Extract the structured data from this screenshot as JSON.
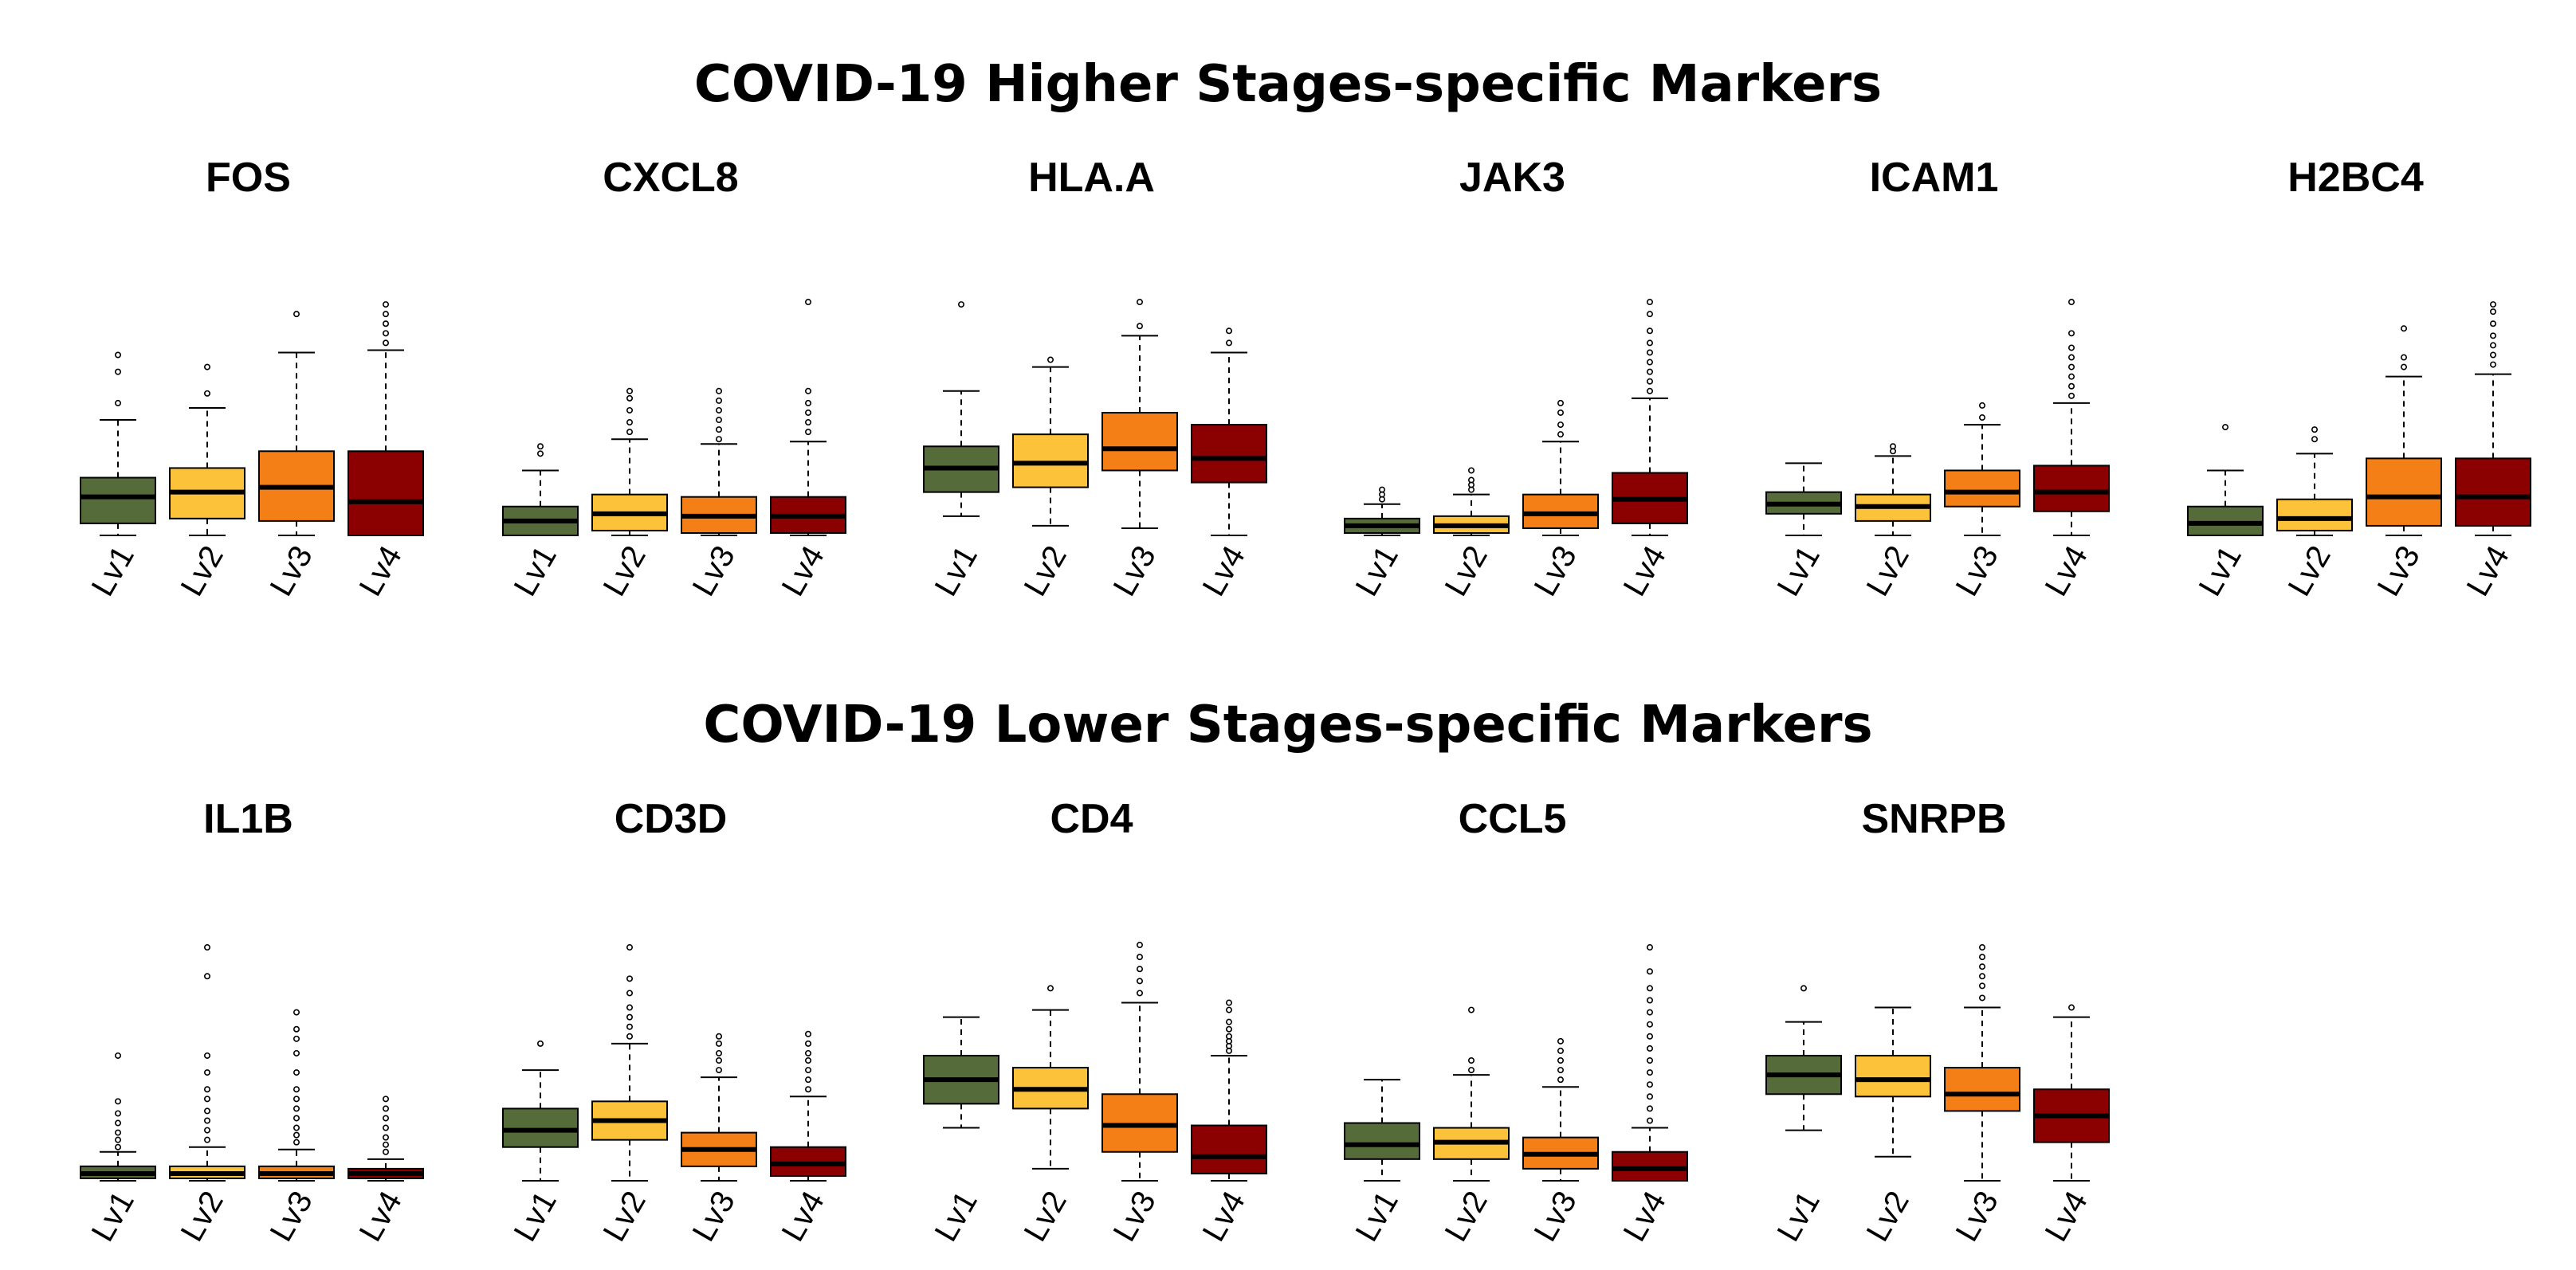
{
  "sections": [
    {
      "title": "COVID-19 Higher Stages-specific Markers"
    },
    {
      "title": "COVID-19 Lower Stages-specific Markers"
    }
  ],
  "colors": {
    "Lv1": "#556b3a",
    "Lv2": "#fbc23a",
    "Lv3": "#f57f17",
    "Lv4": "#8b0000",
    "outline": "#000000",
    "median": "#000000"
  },
  "chart_data": [
    {
      "type": "box",
      "gene": "FOS",
      "row": 0,
      "col": 0,
      "categories": [
        "Lv1",
        "Lv2",
        "Lv3",
        "Lv4"
      ],
      "ylim": [
        0,
        100
      ],
      "boxes": [
        {
          "q1": 5,
          "median": 16,
          "q3": 24,
          "low": 0,
          "high": 48,
          "outliers": [
            55,
            68,
            75
          ]
        },
        {
          "q1": 7,
          "median": 18,
          "q3": 28,
          "low": 0,
          "high": 53,
          "outliers": [
            59,
            70
          ]
        },
        {
          "q1": 6,
          "median": 20,
          "q3": 35,
          "low": 0,
          "high": 76,
          "outliers": [
            92
          ]
        },
        {
          "q1": 0,
          "median": 14,
          "q3": 35,
          "low": 0,
          "high": 77,
          "outliers": [
            80,
            84,
            88,
            92,
            96
          ]
        }
      ]
    },
    {
      "type": "box",
      "gene": "CXCL8",
      "row": 0,
      "col": 1,
      "categories": [
        "Lv1",
        "Lv2",
        "Lv3",
        "Lv4"
      ],
      "ylim": [
        0,
        100
      ],
      "boxes": [
        {
          "q1": 0,
          "median": 6,
          "q3": 12,
          "low": 0,
          "high": 27,
          "outliers": [
            34,
            37
          ]
        },
        {
          "q1": 2,
          "median": 9,
          "q3": 17,
          "low": 0,
          "high": 40,
          "outliers": [
            43,
            47,
            52,
            57,
            60
          ]
        },
        {
          "q1": 1,
          "median": 8,
          "q3": 16,
          "low": 0,
          "high": 38,
          "outliers": [
            40,
            44,
            48,
            52,
            56,
            60
          ]
        },
        {
          "q1": 1,
          "median": 8,
          "q3": 16,
          "low": 0,
          "high": 39,
          "outliers": [
            43,
            47,
            51,
            55,
            60,
            97
          ]
        }
      ]
    },
    {
      "type": "box",
      "gene": "HLA.A",
      "row": 0,
      "col": 2,
      "categories": [
        "Lv1",
        "Lv2",
        "Lv3",
        "Lv4"
      ],
      "ylim": [
        0,
        100
      ],
      "boxes": [
        {
          "q1": 18,
          "median": 28,
          "q3": 37,
          "low": 8,
          "high": 60,
          "outliers": [
            96
          ]
        },
        {
          "q1": 20,
          "median": 30,
          "q3": 42,
          "low": 4,
          "high": 70,
          "outliers": [
            73
          ]
        },
        {
          "q1": 27,
          "median": 36,
          "q3": 51,
          "low": 3,
          "high": 83,
          "outliers": [
            87,
            97
          ]
        },
        {
          "q1": 22,
          "median": 32,
          "q3": 46,
          "low": 0,
          "high": 76,
          "outliers": [
            80,
            85
          ]
        }
      ]
    },
    {
      "type": "box",
      "gene": "JAK3",
      "row": 0,
      "col": 3,
      "categories": [
        "Lv1",
        "Lv2",
        "Lv3",
        "Lv4"
      ],
      "ylim": [
        0,
        100
      ],
      "boxes": [
        {
          "q1": 1,
          "median": 4,
          "q3": 7,
          "low": 0,
          "high": 13,
          "outliers": [
            15,
            17,
            19
          ]
        },
        {
          "q1": 1,
          "median": 4,
          "q3": 8,
          "low": 0,
          "high": 17,
          "outliers": [
            19,
            21,
            23,
            27
          ]
        },
        {
          "q1": 3,
          "median": 9,
          "q3": 17,
          "low": 0,
          "high": 39,
          "outliers": [
            42,
            46,
            51,
            55
          ]
        },
        {
          "q1": 5,
          "median": 15,
          "q3": 26,
          "low": 0,
          "high": 57,
          "outliers": [
            60,
            64,
            68,
            72,
            76,
            80,
            85,
            92,
            97
          ]
        }
      ]
    },
    {
      "type": "box",
      "gene": "ICAM1",
      "row": 0,
      "col": 4,
      "categories": [
        "Lv1",
        "Lv2",
        "Lv3",
        "Lv4"
      ],
      "ylim": [
        0,
        100
      ],
      "boxes": [
        {
          "q1": 9,
          "median": 13,
          "q3": 18,
          "low": 0,
          "high": 30,
          "outliers": []
        },
        {
          "q1": 6,
          "median": 12,
          "q3": 17,
          "low": 0,
          "high": 33,
          "outliers": [
            35,
            37
          ]
        },
        {
          "q1": 12,
          "median": 18,
          "q3": 27,
          "low": 0,
          "high": 46,
          "outliers": [
            49,
            54
          ]
        },
        {
          "q1": 10,
          "median": 18,
          "q3": 29,
          "low": 0,
          "high": 55,
          "outliers": [
            58,
            62,
            66,
            70,
            74,
            78,
            84,
            97
          ]
        }
      ]
    },
    {
      "type": "box",
      "gene": "H2BC4",
      "row": 0,
      "col": 5,
      "categories": [
        "Lv1",
        "Lv2",
        "Lv3",
        "Lv4"
      ],
      "ylim": [
        0,
        100
      ],
      "boxes": [
        {
          "q1": 0,
          "median": 5,
          "q3": 12,
          "low": 0,
          "high": 27,
          "outliers": [
            45
          ]
        },
        {
          "q1": 2,
          "median": 7,
          "q3": 15,
          "low": 0,
          "high": 34,
          "outliers": [
            40,
            44
          ]
        },
        {
          "q1": 4,
          "median": 16,
          "q3": 32,
          "low": 0,
          "high": 66,
          "outliers": [
            70,
            74,
            86
          ]
        },
        {
          "q1": 4,
          "median": 16,
          "q3": 32,
          "low": 0,
          "high": 67,
          "outliers": [
            71,
            75,
            79,
            83,
            88,
            93,
            96
          ]
        }
      ]
    },
    {
      "type": "box",
      "gene": "IL1B",
      "row": 1,
      "col": 0,
      "categories": [
        "Lv1",
        "Lv2",
        "Lv3",
        "Lv4"
      ],
      "ylim": [
        0,
        100
      ],
      "boxes": [
        {
          "q1": 1,
          "median": 3,
          "q3": 6,
          "low": 0,
          "high": 12,
          "outliers": [
            14,
            17,
            20,
            24,
            28,
            33,
            52
          ]
        },
        {
          "q1": 1,
          "median": 3,
          "q3": 6,
          "low": 0,
          "high": 14,
          "outliers": [
            17,
            21,
            25,
            29,
            34,
            38,
            45,
            52,
            85,
            97
          ]
        },
        {
          "q1": 1,
          "median": 3,
          "q3": 6,
          "low": 0,
          "high": 13,
          "outliers": [
            16,
            19,
            22,
            26,
            30,
            34,
            38,
            45,
            53,
            59,
            63,
            70
          ]
        },
        {
          "q1": 1,
          "median": 3,
          "q3": 5,
          "low": 0,
          "high": 9,
          "outliers": [
            12,
            15,
            18,
            22,
            26,
            30,
            34
          ]
        }
      ]
    },
    {
      "type": "box",
      "gene": "CD3D",
      "row": 1,
      "col": 1,
      "categories": [
        "Lv1",
        "Lv2",
        "Lv3",
        "Lv4"
      ],
      "ylim": [
        0,
        100
      ],
      "boxes": [
        {
          "q1": 14,
          "median": 21,
          "q3": 30,
          "low": 0,
          "high": 46,
          "outliers": [
            57
          ]
        },
        {
          "q1": 17,
          "median": 25,
          "q3": 33,
          "low": 0,
          "high": 57,
          "outliers": [
            60,
            64,
            68,
            72,
            78,
            84,
            97
          ]
        },
        {
          "q1": 6,
          "median": 13,
          "q3": 20,
          "low": 0,
          "high": 43,
          "outliers": [
            46,
            50,
            53,
            57,
            60
          ]
        },
        {
          "q1": 2,
          "median": 7,
          "q3": 14,
          "low": 0,
          "high": 35,
          "outliers": [
            38,
            42,
            46,
            50,
            53,
            57,
            61
          ]
        }
      ]
    },
    {
      "type": "box",
      "gene": "CD4",
      "row": 1,
      "col": 2,
      "categories": [
        "Lv1",
        "Lv2",
        "Lv3",
        "Lv4"
      ],
      "ylim": [
        0,
        100
      ],
      "boxes": [
        {
          "q1": 32,
          "median": 42,
          "q3": 52,
          "low": 22,
          "high": 68,
          "outliers": []
        },
        {
          "q1": 30,
          "median": 38,
          "q3": 47,
          "low": 5,
          "high": 71,
          "outliers": [
            80
          ]
        },
        {
          "q1": 12,
          "median": 23,
          "q3": 36,
          "low": 0,
          "high": 74,
          "outliers": [
            78,
            83,
            88,
            93,
            98
          ]
        },
        {
          "q1": 3,
          "median": 10,
          "q3": 23,
          "low": 0,
          "high": 52,
          "outliers": [
            54,
            56,
            58,
            60,
            63,
            66,
            71,
            74
          ]
        }
      ]
    },
    {
      "type": "box",
      "gene": "CCL5",
      "row": 1,
      "col": 3,
      "categories": [
        "Lv1",
        "Lv2",
        "Lv3",
        "Lv4"
      ],
      "ylim": [
        0,
        100
      ],
      "boxes": [
        {
          "q1": 9,
          "median": 15,
          "q3": 24,
          "low": 0,
          "high": 42,
          "outliers": []
        },
        {
          "q1": 9,
          "median": 16,
          "q3": 22,
          "low": 0,
          "high": 44,
          "outliers": [
            46,
            50,
            71
          ]
        },
        {
          "q1": 5,
          "median": 11,
          "q3": 18,
          "low": 0,
          "high": 39,
          "outliers": [
            42,
            46,
            50,
            54,
            58
          ]
        },
        {
          "q1": 0,
          "median": 5,
          "q3": 12,
          "low": 0,
          "high": 22,
          "outliers": [
            25,
            30,
            35,
            40,
            45,
            50,
            55,
            60,
            65,
            70,
            75,
            80,
            87,
            97
          ]
        }
      ]
    },
    {
      "type": "box",
      "gene": "SNRPB",
      "row": 1,
      "col": 4,
      "categories": [
        "Lv1",
        "Lv2",
        "Lv3",
        "Lv4"
      ],
      "ylim": [
        0,
        100
      ],
      "boxes": [
        {
          "q1": 36,
          "median": 44,
          "q3": 52,
          "low": 21,
          "high": 66,
          "outliers": [
            80
          ]
        },
        {
          "q1": 35,
          "median": 42,
          "q3": 52,
          "low": 10,
          "high": 72,
          "outliers": []
        },
        {
          "q1": 29,
          "median": 36,
          "q3": 47,
          "low": 0,
          "high": 72,
          "outliers": [
            76,
            81,
            85,
            89,
            93,
            97
          ]
        },
        {
          "q1": 16,
          "median": 27,
          "q3": 38,
          "low": 0,
          "high": 68,
          "outliers": [
            72
          ]
        }
      ]
    }
  ]
}
